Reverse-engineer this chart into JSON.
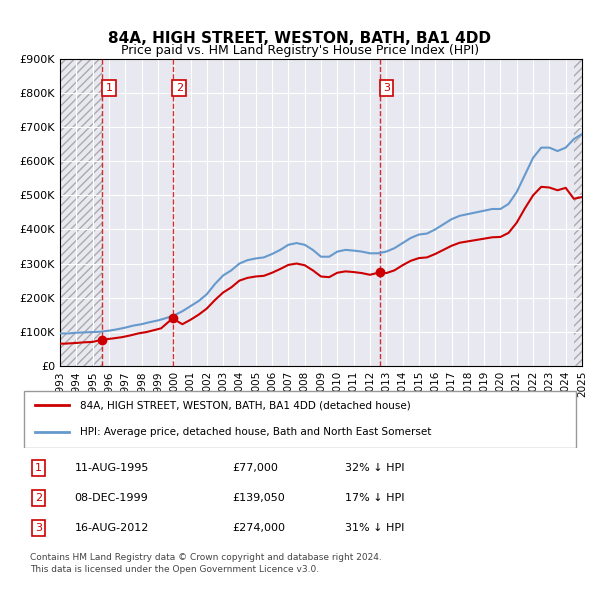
{
  "title": "84A, HIGH STREET, WESTON, BATH, BA1 4DD",
  "subtitle": "Price paid vs. HM Land Registry's House Price Index (HPI)",
  "legend_label_red": "84A, HIGH STREET, WESTON, BATH, BA1 4DD (detached house)",
  "legend_label_blue": "HPI: Average price, detached house, Bath and North East Somerset",
  "footer1": "Contains HM Land Registry data © Crown copyright and database right 2024.",
  "footer2": "This data is licensed under the Open Government Licence v3.0.",
  "transactions": [
    {
      "num": 1,
      "date": "11-AUG-1995",
      "price": 77000,
      "note": "32% ↓ HPI",
      "year": 1995.6
    },
    {
      "num": 2,
      "date": "08-DEC-1999",
      "price": 139050,
      "note": "17% ↓ HPI",
      "year": 1999.9
    },
    {
      "num": 3,
      "date": "16-AUG-2012",
      "price": 274000,
      "note": "31% ↓ HPI",
      "year": 2012.6
    }
  ],
  "hpi_data": {
    "years": [
      1993.0,
      1993.5,
      1994.0,
      1994.5,
      1995.0,
      1995.5,
      1996.0,
      1996.5,
      1997.0,
      1997.5,
      1998.0,
      1998.5,
      1999.0,
      1999.5,
      2000.0,
      2000.5,
      2001.0,
      2001.5,
      2002.0,
      2002.5,
      2003.0,
      2003.5,
      2004.0,
      2004.5,
      2005.0,
      2005.5,
      2006.0,
      2006.5,
      2007.0,
      2007.5,
      2008.0,
      2008.5,
      2009.0,
      2009.5,
      2010.0,
      2010.5,
      2011.0,
      2011.5,
      2012.0,
      2012.5,
      2013.0,
      2013.5,
      2014.0,
      2014.5,
      2015.0,
      2015.5,
      2016.0,
      2016.5,
      2017.0,
      2017.5,
      2018.0,
      2018.5,
      2019.0,
      2019.5,
      2020.0,
      2020.5,
      2021.0,
      2021.5,
      2022.0,
      2022.5,
      2023.0,
      2023.5,
      2024.0,
      2024.5,
      2025.0
    ],
    "values": [
      95000,
      95000,
      97000,
      98000,
      99000,
      100000,
      103000,
      107000,
      112000,
      118000,
      122000,
      128000,
      133000,
      140000,
      148000,
      160000,
      175000,
      190000,
      210000,
      240000,
      265000,
      280000,
      300000,
      310000,
      315000,
      318000,
      328000,
      340000,
      355000,
      360000,
      355000,
      340000,
      320000,
      320000,
      335000,
      340000,
      338000,
      335000,
      330000,
      330000,
      335000,
      345000,
      360000,
      375000,
      385000,
      388000,
      400000,
      415000,
      430000,
      440000,
      445000,
      450000,
      455000,
      460000,
      460000,
      475000,
      510000,
      560000,
      610000,
      640000,
      640000,
      630000,
      640000,
      665000,
      680000
    ]
  },
  "price_data": {
    "years": [
      1993.0,
      1993.3,
      1994.0,
      1994.5,
      1995.0,
      1995.6,
      1996.2,
      1996.8,
      1997.3,
      1997.8,
      1998.3,
      1998.8,
      1999.2,
      1999.9,
      2000.5,
      2001.0,
      2001.5,
      2002.0,
      2002.5,
      2003.0,
      2003.5,
      2004.0,
      2004.5,
      2005.0,
      2005.5,
      2006.0,
      2006.5,
      2007.0,
      2007.5,
      2008.0,
      2008.5,
      2009.0,
      2009.5,
      2010.0,
      2010.5,
      2011.0,
      2011.5,
      2012.0,
      2012.6,
      2013.0,
      2013.5,
      2014.0,
      2014.5,
      2015.0,
      2015.5,
      2016.0,
      2016.5,
      2017.0,
      2017.5,
      2018.0,
      2018.5,
      2019.0,
      2019.5,
      2020.0,
      2020.5,
      2021.0,
      2021.5,
      2022.0,
      2022.5,
      2023.0,
      2023.5,
      2024.0,
      2024.5,
      2025.0
    ],
    "values": [
      65000,
      65000,
      67000,
      69000,
      70000,
      77000,
      80000,
      84000,
      89000,
      95000,
      99000,
      105000,
      110000,
      139050,
      122000,
      135000,
      150000,
      168000,
      193000,
      215000,
      230000,
      250000,
      258000,
      262000,
      264000,
      273000,
      284000,
      296000,
      300000,
      295000,
      280000,
      262000,
      260000,
      273000,
      277000,
      275000,
      272000,
      267000,
      274000,
      272000,
      280000,
      295000,
      308000,
      316000,
      318000,
      328000,
      340000,
      352000,
      361000,
      365000,
      369000,
      373000,
      377000,
      378000,
      390000,
      420000,
      462000,
      500000,
      525000,
      523000,
      515000,
      522000,
      490000,
      495000
    ]
  },
  "ylim": [
    0,
    900000
  ],
  "xlim": [
    1993,
    2025
  ],
  "yticks": [
    0,
    100000,
    200000,
    300000,
    400000,
    500000,
    600000,
    700000,
    800000,
    900000
  ],
  "ytick_labels": [
    "£0",
    "£100K",
    "£200K",
    "£300K",
    "£400K",
    "£500K",
    "£600K",
    "£700K",
    "£800K",
    "£900K"
  ],
  "xticks": [
    1993,
    1994,
    1995,
    1996,
    1997,
    1998,
    1999,
    2000,
    2001,
    2002,
    2003,
    2004,
    2005,
    2006,
    2007,
    2008,
    2009,
    2010,
    2011,
    2012,
    2013,
    2014,
    2015,
    2016,
    2017,
    2018,
    2019,
    2020,
    2021,
    2022,
    2023,
    2024,
    2025
  ],
  "color_red": "#cc0000",
  "color_blue": "#6699cc",
  "color_hatch": "#cccccc",
  "bg_color": "#ffffff",
  "plot_bg": "#e8e8f0",
  "grid_color": "#ffffff",
  "box_color_red": "#cc0000"
}
